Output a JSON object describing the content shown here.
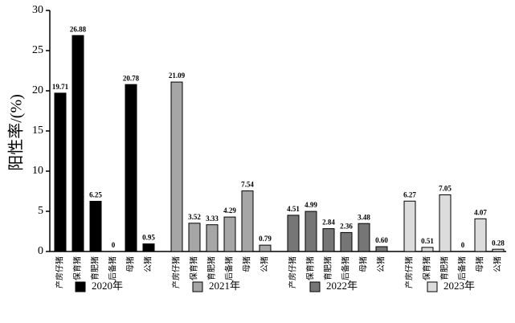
{
  "chart_data": {
    "type": "bar",
    "y_label": "阳性率/(%)",
    "categories": [
      "产房仔猪",
      "保育猪",
      "育肥猪",
      "后备猪",
      "母猪",
      "公猪"
    ],
    "series": [
      {
        "name": "2020年",
        "color": "#000000",
        "values": [
          19.71,
          26.88,
          6.25,
          0,
          20.78,
          0.95
        ],
        "value_labels": [
          "19.71",
          "26.88",
          "6.25",
          "0",
          "20.78",
          "0.95"
        ]
      },
      {
        "name": "2021年",
        "color": "#a6a6a6",
        "values": [
          21.09,
          3.52,
          3.33,
          4.29,
          7.54,
          0.79
        ],
        "value_labels": [
          "21.09",
          "3.52",
          "3.33",
          "4.29",
          "7.54",
          "0.79"
        ]
      },
      {
        "name": "2022年",
        "color": "#767676",
        "values": [
          4.51,
          4.99,
          2.84,
          2.36,
          3.48,
          0.6
        ],
        "value_labels": [
          "4.51",
          "4.99",
          "2.84",
          "2.36",
          "3.48",
          "0.60"
        ]
      },
      {
        "name": "2023年",
        "color": "#dcdcdc",
        "values": [
          6.27,
          0.51,
          7.05,
          0,
          4.07,
          0.28
        ],
        "value_labels": [
          "6.27",
          "0.51",
          "7.05",
          "0",
          "4.07",
          "0.28"
        ]
      }
    ],
    "ylim": [
      0,
      30
    ],
    "yticks": [
      0,
      5,
      10,
      15,
      20,
      25,
      30
    ]
  }
}
